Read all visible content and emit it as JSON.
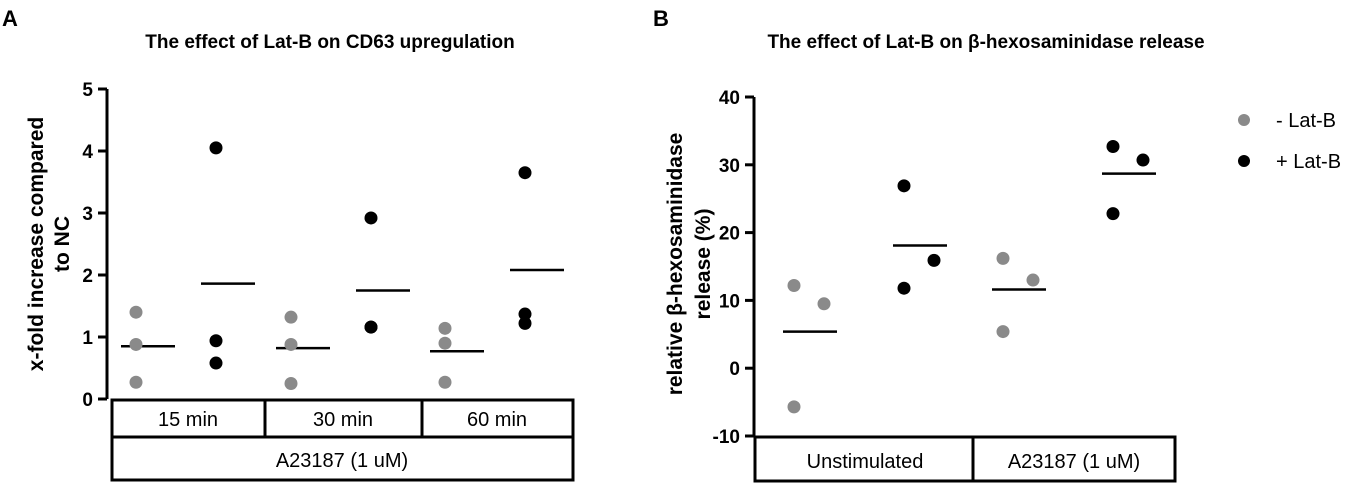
{
  "chart_data": [
    {
      "panel_label": "A",
      "type": "scatter",
      "title": "The effect of Lat-B on CD63 upregulation",
      "ylabel_lines": [
        "x-fold increase compared",
        "to NC"
      ],
      "ylim": [
        0,
        5
      ],
      "yticks": [
        0,
        1,
        2,
        3,
        4,
        5
      ],
      "ytick_labels": [
        "0",
        "1",
        "2",
        "3",
        "4",
        "5"
      ],
      "groups": [
        {
          "label": "15 min",
          "series": [
            {
              "name": "- Lat-B",
              "points": [
                1.4,
                0.88,
                0.27
              ],
              "mean": 0.85
            },
            {
              "name": "+ Lat-B",
              "points": [
                4.05,
                0.94,
                0.58
              ],
              "mean": 1.86
            }
          ]
        },
        {
          "label": "30 min",
          "series": [
            {
              "name": "- Lat-B",
              "points": [
                1.32,
                0.88,
                0.25
              ],
              "mean": 0.82
            },
            {
              "name": "+ Lat-B",
              "points": [
                2.92,
                1.16,
                1.16
              ],
              "mean": 1.75
            }
          ]
        },
        {
          "label": "60 min",
          "series": [
            {
              "name": "- Lat-B",
              "points": [
                1.14,
                0.9,
                0.27
              ],
              "mean": 0.77
            },
            {
              "name": "+ Lat-B",
              "points": [
                3.65,
                1.37,
                1.22
              ],
              "mean": 2.08
            }
          ]
        }
      ],
      "treatment_label": "A23187 (1 uM)"
    },
    {
      "panel_label": "B",
      "type": "scatter",
      "title": "The effect of Lat-B on β-hexosaminidase release",
      "ylabel_lines": [
        "relative β-hexosaminidase",
        "release (%)"
      ],
      "ylim": [
        -10,
        40
      ],
      "yticks": [
        -10,
        0,
        10,
        20,
        30,
        40
      ],
      "ytick_labels": [
        "-10",
        "0",
        "10",
        "20",
        "30",
        "40"
      ],
      "groups": [
        {
          "label": "Unstimulated",
          "series": [
            {
              "name": "- Lat-B",
              "points": [
                12.2,
                9.5,
                -5.7
              ],
              "mean": 5.4
            },
            {
              "name": "+ Lat-B",
              "points": [
                26.9,
                15.9,
                11.8
              ],
              "mean": 18.1
            }
          ]
        },
        {
          "label": "A23187 (1 uM)",
          "series": [
            {
              "name": "- Lat-B",
              "points": [
                16.2,
                13.0,
                5.4
              ],
              "mean": 11.6
            },
            {
              "name": "+ Lat-B",
              "points": [
                32.7,
                30.7,
                22.8
              ],
              "mean": 28.7
            }
          ]
        }
      ],
      "legend": [
        {
          "name": "- Lat-B",
          "color": "#8a8a8a"
        },
        {
          "name": "+ Lat-B",
          "color": "#000000"
        }
      ]
    }
  ]
}
